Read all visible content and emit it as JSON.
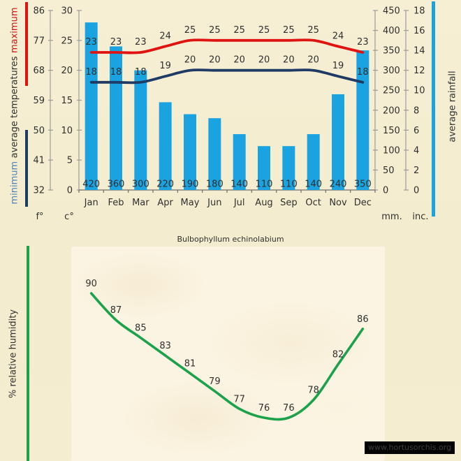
{
  "title": "Bulbophyllum echinolabium",
  "watermark": "www.hortusorchis.org",
  "side_labels": {
    "minimum": "minimum",
    "average_temperatures": "average temperatures",
    "maximum": "maximum",
    "average_rainfall": "average rainfall",
    "relative_humidity": "% relative humidity"
  },
  "unit_labels": {
    "fahrenheit": "f°",
    "celsius": "c°",
    "millimeters": "mm.",
    "inches": "inc."
  },
  "colors": {
    "background": "#f4edcf",
    "panel": "#fbf4e2",
    "maximum_line": "#df1310",
    "minimum_line": "#1f3a64",
    "rainfall_bar": "#1aa3e0",
    "humidity_line": "#1ca24b",
    "minimum_text": "#4f81bd",
    "axis": "#9b9b9b",
    "baseline": "#6e6e6e",
    "text": "#2f2f2f"
  },
  "chart_data": [
    {
      "type": "bar",
      "subtype": "combo-bar-line-climate",
      "categories": [
        "Jan",
        "Feb",
        "Mar",
        "Apr",
        "May",
        "Jun",
        "Jul",
        "Aug",
        "Sep",
        "Oct",
        "Nov",
        "Dec"
      ],
      "series": [
        {
          "name": "average rainfall",
          "type": "bar",
          "unit": "mm",
          "values": [
            420,
            360,
            300,
            220,
            190,
            180,
            140,
            110,
            110,
            140,
            240,
            350
          ]
        },
        {
          "name": "maximum temperature",
          "type": "line",
          "unit": "c°",
          "values": [
            23,
            23,
            23,
            24,
            25,
            25,
            25,
            25,
            25,
            25,
            24,
            23
          ]
        },
        {
          "name": "minimum temperature",
          "type": "line",
          "unit": "c°",
          "values": [
            18,
            18,
            18,
            19,
            20,
            20,
            20,
            20,
            20,
            20,
            19,
            18
          ]
        }
      ],
      "axes": {
        "left_fahrenheit": {
          "label": "f°",
          "ticks": [
            86,
            77,
            68,
            59,
            50,
            41,
            32
          ]
        },
        "left_celsius": {
          "label": "c°",
          "ticks": [
            30,
            25,
            20,
            15,
            10,
            5,
            0
          ],
          "range": [
            0,
            30
          ]
        },
        "right_mm": {
          "label": "mm.",
          "ticks": [
            450,
            400,
            350,
            300,
            250,
            200,
            150,
            100,
            50,
            0
          ],
          "range": [
            0,
            450
          ]
        },
        "right_inches": {
          "label": "inc.",
          "ticks": [
            18,
            16,
            14,
            12,
            10,
            8,
            6,
            4,
            2,
            0
          ],
          "range": [
            0,
            18
          ]
        }
      },
      "grid": false,
      "legend_position": "rotated side titles",
      "data_labels": true
    },
    {
      "type": "line",
      "categories": [
        "Jan",
        "Feb",
        "Mar",
        "Apr",
        "May",
        "Jun",
        "Jul",
        "Aug",
        "Sep",
        "Oct",
        "Nov",
        "Dec"
      ],
      "x_axis_labels_visible": false,
      "values": [
        90,
        87,
        85,
        83,
        81,
        79,
        77,
        76,
        76,
        78,
        82,
        86
      ],
      "ylabel": "% relative humidity",
      "grid": false,
      "data_labels": true
    }
  ]
}
